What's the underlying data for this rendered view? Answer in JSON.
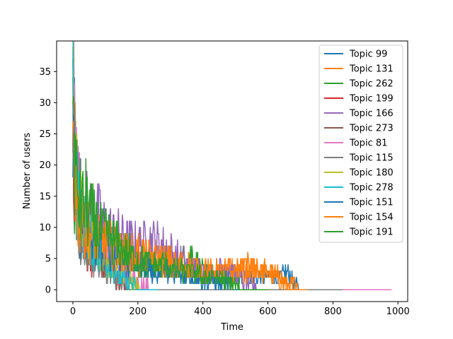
{
  "chart_data": {
    "type": "line",
    "title": "",
    "xlabel": "Time",
    "ylabel": "Number of users",
    "xlim": [
      -50,
      1030
    ],
    "ylim": [
      -1.9,
      39.9
    ],
    "xticks": [
      0,
      200,
      400,
      600,
      800,
      1000
    ],
    "yticks": [
      0,
      5,
      10,
      15,
      20,
      25,
      30,
      35
    ],
    "xtick_labels": [
      "0",
      "200",
      "400",
      "600",
      "800",
      "1000"
    ],
    "ytick_labels": [
      "0",
      "5",
      "10",
      "15",
      "20",
      "25",
      "30",
      "35"
    ],
    "grid": false,
    "legend_position": "top-right",
    "series": [
      {
        "name": "Topic 99",
        "color": "#1f77b4",
        "points": [
          [
            0,
            32
          ],
          [
            5,
            22
          ],
          [
            10,
            15
          ],
          [
            20,
            12
          ],
          [
            40,
            9
          ],
          [
            60,
            8
          ],
          [
            90,
            6
          ],
          [
            120,
            5
          ],
          [
            160,
            4
          ],
          [
            200,
            4
          ],
          [
            260,
            3
          ],
          [
            320,
            3
          ],
          [
            380,
            2
          ],
          [
            440,
            2
          ],
          [
            500,
            2
          ],
          [
            560,
            2
          ],
          [
            600,
            2
          ],
          [
            640,
            2
          ],
          [
            660,
            3
          ],
          [
            680,
            1
          ],
          [
            700,
            0
          ],
          [
            760,
            0
          ],
          [
            820,
            0
          ]
        ]
      },
      {
        "name": "Topic 131",
        "color": "#ff7f0e",
        "points": [
          [
            0,
            33
          ],
          [
            5,
            24
          ],
          [
            12,
            16
          ],
          [
            25,
            12
          ],
          [
            50,
            10
          ],
          [
            80,
            8
          ],
          [
            120,
            7
          ],
          [
            160,
            6
          ],
          [
            200,
            5
          ],
          [
            260,
            5
          ],
          [
            320,
            4
          ],
          [
            380,
            3
          ],
          [
            440,
            3
          ],
          [
            500,
            3
          ],
          [
            540,
            4
          ],
          [
            580,
            3
          ],
          [
            620,
            2
          ],
          [
            660,
            1
          ],
          [
            700,
            0
          ],
          [
            760,
            0
          ]
        ]
      },
      {
        "name": "Topic 262",
        "color": "#2ca02c",
        "points": [
          [
            0,
            31
          ],
          [
            5,
            21
          ],
          [
            12,
            15
          ],
          [
            25,
            12
          ],
          [
            50,
            10
          ],
          [
            80,
            9
          ],
          [
            120,
            7
          ],
          [
            160,
            6
          ],
          [
            200,
            5
          ],
          [
            260,
            4
          ],
          [
            320,
            4
          ],
          [
            360,
            6
          ],
          [
            400,
            3
          ],
          [
            440,
            2
          ],
          [
            480,
            1
          ],
          [
            500,
            0
          ],
          [
            560,
            0
          ]
        ]
      },
      {
        "name": "Topic 199",
        "color": "#d62728",
        "points": [
          [
            0,
            30
          ],
          [
            6,
            20
          ],
          [
            14,
            12
          ],
          [
            30,
            8
          ],
          [
            60,
            5
          ],
          [
            90,
            4
          ],
          [
            120,
            2
          ],
          [
            150,
            1
          ],
          [
            180,
            0
          ],
          [
            240,
            0
          ]
        ]
      },
      {
        "name": "Topic 166",
        "color": "#9467bd",
        "points": [
          [
            0,
            34
          ],
          [
            5,
            25
          ],
          [
            12,
            18
          ],
          [
            25,
            14
          ],
          [
            50,
            12
          ],
          [
            80,
            11
          ],
          [
            120,
            9
          ],
          [
            160,
            8
          ],
          [
            200,
            7
          ],
          [
            240,
            8
          ],
          [
            280,
            7
          ],
          [
            320,
            5
          ],
          [
            360,
            4
          ],
          [
            400,
            3
          ],
          [
            440,
            3
          ],
          [
            480,
            4
          ],
          [
            500,
            2
          ],
          [
            540,
            1
          ],
          [
            580,
            0
          ],
          [
            640,
            0
          ]
        ]
      },
      {
        "name": "Topic 273",
        "color": "#8c564b",
        "points": [
          [
            0,
            29
          ],
          [
            6,
            19
          ],
          [
            14,
            12
          ],
          [
            30,
            8
          ],
          [
            60,
            6
          ],
          [
            90,
            4
          ],
          [
            120,
            3
          ],
          [
            150,
            1
          ],
          [
            180,
            0
          ],
          [
            240,
            0
          ]
        ]
      },
      {
        "name": "Topic 81",
        "color": "#e377c2",
        "points": [
          [
            0,
            38
          ],
          [
            5,
            26
          ],
          [
            12,
            18
          ],
          [
            25,
            13
          ],
          [
            50,
            10
          ],
          [
            80,
            8
          ],
          [
            110,
            6
          ],
          [
            140,
            4
          ],
          [
            170,
            2
          ],
          [
            200,
            1
          ],
          [
            240,
            0
          ],
          [
            400,
            0
          ],
          [
            600,
            0
          ],
          [
            800,
            0
          ],
          [
            980,
            0
          ]
        ]
      },
      {
        "name": "Topic 115",
        "color": "#7f7f7f",
        "points": [
          [
            0,
            28
          ],
          [
            6,
            18
          ],
          [
            14,
            11
          ],
          [
            30,
            7
          ],
          [
            60,
            5
          ],
          [
            90,
            3
          ],
          [
            120,
            2
          ],
          [
            150,
            1
          ],
          [
            180,
            0
          ],
          [
            300,
            0
          ],
          [
            500,
            0
          ],
          [
            700,
            0
          ],
          [
            830,
            0
          ]
        ]
      },
      {
        "name": "Topic 180",
        "color": "#bcbd22",
        "points": [
          [
            0,
            30
          ],
          [
            6,
            22
          ],
          [
            14,
            15
          ],
          [
            25,
            12
          ],
          [
            40,
            10
          ],
          [
            60,
            8
          ],
          [
            90,
            6
          ],
          [
            120,
            4
          ],
          [
            150,
            3
          ],
          [
            180,
            1
          ],
          [
            210,
            0
          ],
          [
            260,
            0
          ]
        ]
      },
      {
        "name": "Topic 278",
        "color": "#17becf",
        "points": [
          [
            0,
            35
          ],
          [
            5,
            24
          ],
          [
            12,
            16
          ],
          [
            25,
            11
          ],
          [
            50,
            8
          ],
          [
            80,
            6
          ],
          [
            110,
            4
          ],
          [
            140,
            2
          ],
          [
            170,
            1
          ],
          [
            200,
            0
          ],
          [
            260,
            0
          ]
        ]
      },
      {
        "name": "Topic 151",
        "color": "#1f77b4",
        "points": [
          [
            0,
            27
          ],
          [
            6,
            18
          ],
          [
            14,
            12
          ],
          [
            30,
            9
          ],
          [
            60,
            7
          ],
          [
            100,
            6
          ],
          [
            140,
            5
          ],
          [
            180,
            4
          ],
          [
            220,
            4
          ],
          [
            260,
            3
          ],
          [
            300,
            3
          ],
          [
            340,
            2
          ],
          [
            380,
            2
          ],
          [
            420,
            1
          ],
          [
            460,
            1
          ],
          [
            500,
            0
          ],
          [
            560,
            0
          ]
        ]
      },
      {
        "name": "Topic 154",
        "color": "#ff7f0e",
        "points": [
          [
            0,
            28
          ],
          [
            5,
            20
          ],
          [
            12,
            14
          ],
          [
            25,
            11
          ],
          [
            50,
            9
          ],
          [
            80,
            8
          ],
          [
            120,
            7
          ],
          [
            160,
            6
          ],
          [
            200,
            6
          ],
          [
            240,
            5
          ],
          [
            280,
            5
          ],
          [
            320,
            4
          ],
          [
            360,
            4
          ],
          [
            400,
            3
          ],
          [
            440,
            3
          ],
          [
            480,
            3
          ],
          [
            520,
            3
          ],
          [
            560,
            3
          ],
          [
            600,
            3
          ],
          [
            640,
            2
          ],
          [
            660,
            0
          ],
          [
            720,
            0
          ]
        ]
      },
      {
        "name": "Topic 191",
        "color": "#2ca02c",
        "points": [
          [
            0,
            30
          ],
          [
            5,
            22
          ],
          [
            12,
            16
          ],
          [
            25,
            13
          ],
          [
            40,
            14
          ],
          [
            60,
            11
          ],
          [
            90,
            9
          ],
          [
            120,
            8
          ],
          [
            160,
            6
          ],
          [
            200,
            5
          ],
          [
            240,
            4
          ],
          [
            280,
            4
          ],
          [
            320,
            3
          ],
          [
            360,
            3
          ],
          [
            400,
            2
          ],
          [
            440,
            2
          ],
          [
            480,
            1
          ],
          [
            520,
            0
          ],
          [
            600,
            0
          ]
        ]
      }
    ]
  }
}
